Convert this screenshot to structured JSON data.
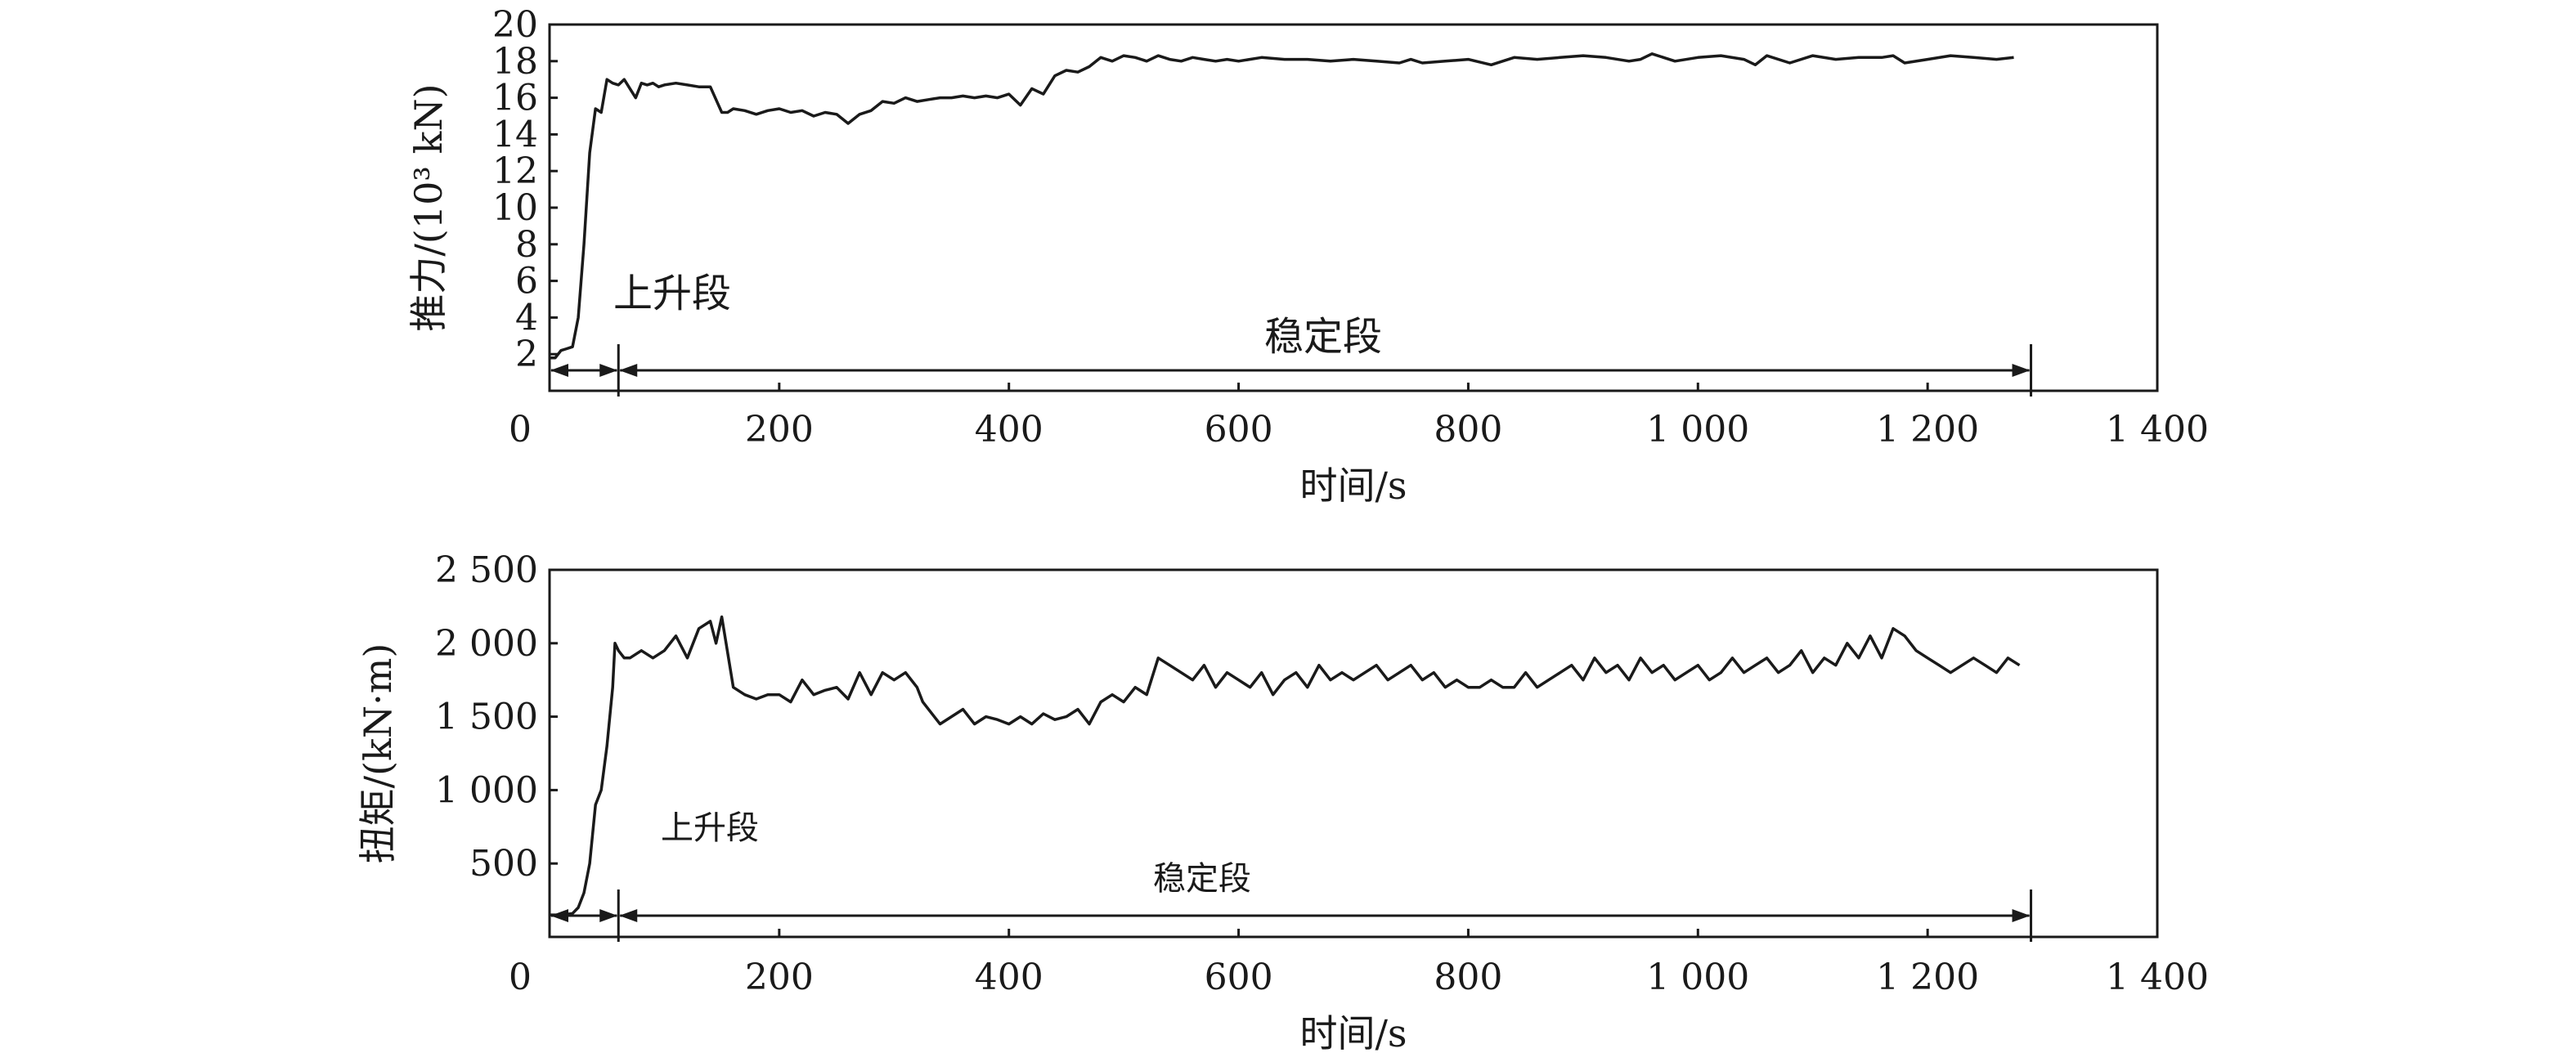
{
  "chart_data": [
    {
      "type": "line",
      "ylabel": "推力/(10³ kN)",
      "xlabel": "时间/s",
      "xlim": [
        0,
        1400
      ],
      "ylim": [
        0,
        20
      ],
      "xticks": [
        {
          "value": 0,
          "label": "0"
        },
        {
          "value": 200,
          "label": "200"
        },
        {
          "value": 400,
          "label": "400"
        },
        {
          "value": 600,
          "label": "600"
        },
        {
          "value": 800,
          "label": "800"
        },
        {
          "value": 1000,
          "label": "1 000"
        },
        {
          "value": 1200,
          "label": "1 200"
        },
        {
          "value": 1400,
          "label": "1 400"
        }
      ],
      "yticks": [
        {
          "value": 2,
          "label": "2"
        },
        {
          "value": 4,
          "label": "4"
        },
        {
          "value": 6,
          "label": "6"
        },
        {
          "value": 8,
          "label": "8"
        },
        {
          "value": 10,
          "label": "10"
        },
        {
          "value": 12,
          "label": "12"
        },
        {
          "value": 14,
          "label": "14"
        },
        {
          "value": 16,
          "label": "16"
        },
        {
          "value": 18,
          "label": "18"
        },
        {
          "value": 20,
          "label": "20"
        }
      ],
      "series": [
        {
          "x": [
            0,
            5,
            10,
            15,
            20,
            25,
            30,
            35,
            40,
            45,
            50,
            55,
            60,
            65,
            70,
            75,
            80,
            85,
            90,
            95,
            100,
            110,
            120,
            130,
            140,
            150,
            155,
            160,
            170,
            180,
            190,
            200,
            210,
            220,
            230,
            240,
            250,
            260,
            270,
            280,
            290,
            300,
            310,
            320,
            330,
            340,
            350,
            360,
            370,
            380,
            390,
            400,
            410,
            420,
            430,
            440,
            450,
            460,
            470,
            480,
            490,
            500,
            510,
            520,
            530,
            540,
            550,
            560,
            570,
            580,
            590,
            600,
            620,
            640,
            660,
            680,
            700,
            720,
            740,
            750,
            760,
            780,
            800,
            820,
            840,
            860,
            880,
            900,
            920,
            940,
            950,
            960,
            980,
            1000,
            1020,
            1040,
            1050,
            1060,
            1080,
            1100,
            1120,
            1140,
            1160,
            1170,
            1180,
            1200,
            1220,
            1240,
            1260,
            1275
          ],
          "y": [
            1.8,
            1.8,
            2.2,
            2.3,
            2.4,
            4.0,
            8.0,
            13.0,
            15.4,
            15.2,
            17.0,
            16.8,
            16.7,
            17.0,
            16.5,
            16.0,
            16.8,
            16.7,
            16.8,
            16.6,
            16.7,
            16.8,
            16.7,
            16.6,
            16.6,
            15.2,
            15.2,
            15.4,
            15.3,
            15.1,
            15.3,
            15.4,
            15.2,
            15.3,
            15.0,
            15.2,
            15.1,
            14.6,
            15.1,
            15.3,
            15.8,
            15.7,
            16.0,
            15.8,
            15.9,
            16.0,
            16.0,
            16.1,
            16.0,
            16.1,
            16.0,
            16.2,
            15.6,
            16.5,
            16.2,
            17.2,
            17.5,
            17.4,
            17.7,
            18.2,
            18.0,
            18.3,
            18.2,
            18.0,
            18.3,
            18.1,
            18.0,
            18.2,
            18.1,
            18.0,
            18.1,
            18.0,
            18.2,
            18.1,
            18.1,
            18.0,
            18.1,
            18.0,
            17.9,
            18.1,
            17.9,
            18.0,
            18.1,
            17.8,
            18.2,
            18.1,
            18.2,
            18.3,
            18.2,
            18.0,
            18.1,
            18.4,
            18.0,
            18.2,
            18.3,
            18.1,
            17.8,
            18.3,
            17.9,
            18.3,
            18.1,
            18.2,
            18.2,
            18.3,
            17.9,
            18.1,
            18.3,
            18.2,
            18.1,
            18.2
          ]
        }
      ],
      "annotations": [
        {
          "text": "上升段",
          "x_start": 0,
          "x_end": 60
        },
        {
          "text": "稳定段",
          "x_start": 60,
          "x_end": 1290
        }
      ]
    },
    {
      "type": "line",
      "ylabel": "扭矩/(kN·m)",
      "xlabel": "时间/s",
      "xlim": [
        0,
        1400
      ],
      "ylim": [
        0,
        2500
      ],
      "xticks": [
        {
          "value": 0,
          "label": "0"
        },
        {
          "value": 200,
          "label": "200"
        },
        {
          "value": 400,
          "label": "400"
        },
        {
          "value": 600,
          "label": "600"
        },
        {
          "value": 800,
          "label": "800"
        },
        {
          "value": 1000,
          "label": "1 000"
        },
        {
          "value": 1200,
          "label": "1 200"
        },
        {
          "value": 1400,
          "label": "1 400"
        }
      ],
      "yticks": [
        {
          "value": 500,
          "label": "500"
        },
        {
          "value": 1000,
          "label": "1 000"
        },
        {
          "value": 1500,
          "label": "1 500"
        },
        {
          "value": 2000,
          "label": "2 000"
        },
        {
          "value": 2500,
          "label": "2 500"
        }
      ],
      "series": [
        {
          "x": [
            0,
            10,
            20,
            25,
            30,
            35,
            40,
            45,
            50,
            55,
            57,
            60,
            65,
            70,
            80,
            90,
            100,
            110,
            120,
            130,
            140,
            145,
            150,
            160,
            170,
            180,
            190,
            200,
            210,
            220,
            230,
            240,
            250,
            260,
            270,
            280,
            290,
            300,
            310,
            320,
            325,
            330,
            340,
            350,
            360,
            370,
            380,
            390,
            400,
            410,
            420,
            430,
            440,
            450,
            460,
            470,
            480,
            490,
            500,
            510,
            520,
            530,
            540,
            550,
            560,
            570,
            580,
            590,
            600,
            610,
            620,
            630,
            640,
            650,
            660,
            670,
            680,
            690,
            700,
            710,
            720,
            730,
            740,
            750,
            760,
            770,
            780,
            790,
            800,
            810,
            820,
            830,
            840,
            850,
            860,
            870,
            880,
            890,
            900,
            910,
            920,
            930,
            940,
            950,
            960,
            970,
            980,
            990,
            1000,
            1010,
            1020,
            1030,
            1040,
            1050,
            1060,
            1070,
            1080,
            1090,
            1100,
            1110,
            1120,
            1130,
            1140,
            1150,
            1160,
            1170,
            1180,
            1190,
            1200,
            1210,
            1220,
            1230,
            1240,
            1250,
            1260,
            1270,
            1280
          ],
          "y": [
            150,
            150,
            160,
            200,
            300,
            500,
            900,
            1000,
            1300,
            1700,
            2000,
            1950,
            1900,
            1900,
            1950,
            1900,
            1950,
            2050,
            1900,
            2100,
            2150,
            2000,
            2180,
            1700,
            1650,
            1620,
            1650,
            1650,
            1600,
            1750,
            1650,
            1680,
            1700,
            1620,
            1800,
            1650,
            1800,
            1750,
            1800,
            1700,
            1600,
            1550,
            1450,
            1500,
            1550,
            1450,
            1500,
            1480,
            1450,
            1500,
            1450,
            1520,
            1480,
            1500,
            1550,
            1450,
            1600,
            1650,
            1600,
            1700,
            1650,
            1900,
            1850,
            1800,
            1750,
            1850,
            1700,
            1800,
            1750,
            1700,
            1800,
            1650,
            1750,
            1800,
            1700,
            1850,
            1750,
            1800,
            1750,
            1800,
            1850,
            1750,
            1800,
            1850,
            1750,
            1800,
            1700,
            1750,
            1700,
            1700,
            1750,
            1700,
            1700,
            1800,
            1700,
            1750,
            1800,
            1850,
            1750,
            1900,
            1800,
            1850,
            1750,
            1900,
            1800,
            1850,
            1750,
            1800,
            1850,
            1750,
            1800,
            1900,
            1800,
            1850,
            1900,
            1800,
            1850,
            1950,
            1800,
            1900,
            1850,
            2000,
            1900,
            2050,
            1900,
            2100,
            2050,
            1950,
            1900,
            1850,
            1800,
            1850,
            1900,
            1850,
            1800,
            1900,
            1850
          ]
        }
      ],
      "annotations": [
        {
          "text": "上升段",
          "x_start": 0,
          "x_end": 60
        },
        {
          "text": "稳定段",
          "x_start": 60,
          "x_end": 1290
        }
      ]
    }
  ]
}
